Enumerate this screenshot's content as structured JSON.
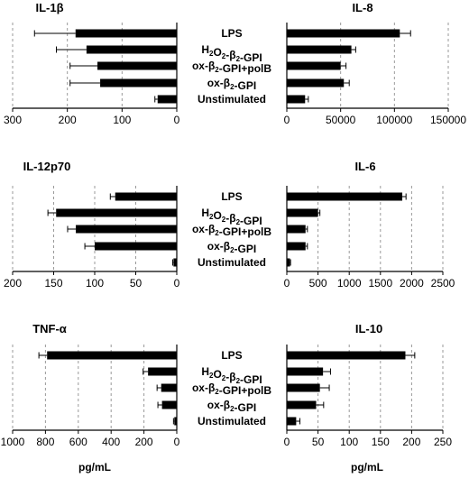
{
  "categories": [
    "LPS",
    "H2O2-β2-GPI",
    "ox-β2-GPI+polB",
    "ox-β2-GPI",
    "Unstimulated"
  ],
  "category_labels": [
    [
      {
        "t": "LPS"
      }
    ],
    [
      {
        "t": "H"
      },
      {
        "t": "2",
        "s": true
      },
      {
        "t": "O"
      },
      {
        "t": "2",
        "s": true
      },
      {
        "t": "-β"
      },
      {
        "t": "2",
        "s": true
      },
      {
        "t": "-GPI"
      }
    ],
    [
      {
        "t": "ox-β"
      },
      {
        "t": "2",
        "s": true
      },
      {
        "t": "-GPI+polB"
      }
    ],
    [
      {
        "t": "ox-β"
      },
      {
        "t": "2",
        "s": true
      },
      {
        "t": "-GPI"
      }
    ],
    [
      {
        "t": "Unstimulated"
      }
    ]
  ],
  "x_unit": "pg/mL",
  "colors": {
    "bar": "#000000",
    "grid": "#999999",
    "axis": "#000000"
  },
  "chart_data": [
    {
      "type": "bar",
      "orientation": "horizontal",
      "direction": "reversed",
      "title": "IL-1β",
      "xlim": [
        0,
        300
      ],
      "ticks": [
        300,
        200,
        100,
        0
      ],
      "grid": true,
      "values": [
        185,
        165,
        145,
        140,
        35
      ],
      "errors": [
        75,
        55,
        50,
        55,
        5
      ]
    },
    {
      "type": "bar",
      "orientation": "horizontal",
      "direction": "normal",
      "title": "IL-8",
      "xlim": [
        0,
        150000
      ],
      "ticks": [
        0,
        50000,
        100000,
        150000
      ],
      "grid": true,
      "values": [
        105000,
        60000,
        50000,
        53000,
        17000
      ],
      "errors": [
        10000,
        4000,
        5000,
        5000,
        3000
      ]
    },
    {
      "type": "bar",
      "orientation": "horizontal",
      "direction": "reversed",
      "title": "IL-12p70",
      "xlim": [
        0,
        200
      ],
      "ticks": [
        200,
        150,
        100,
        50,
        0
      ],
      "grid": true,
      "values": [
        75,
        147,
        123,
        100,
        4
      ],
      "errors": [
        6,
        10,
        10,
        12,
        1
      ]
    },
    {
      "type": "bar",
      "orientation": "horizontal",
      "direction": "normal",
      "title": "IL-6",
      "xlim": [
        0,
        2500
      ],
      "ticks": [
        0,
        500,
        1000,
        1500,
        2000,
        2500
      ],
      "grid": true,
      "values": [
        1850,
        500,
        300,
        300,
        50
      ],
      "errors": [
        60,
        30,
        30,
        30,
        10
      ]
    },
    {
      "type": "bar",
      "orientation": "horizontal",
      "direction": "reversed",
      "title": "TNF-α",
      "xlim": [
        0,
        1000
      ],
      "ticks": [
        1000,
        800,
        600,
        400,
        200,
        0
      ],
      "grid": true,
      "values": [
        790,
        175,
        95,
        90,
        15
      ],
      "errors": [
        50,
        30,
        25,
        25,
        5
      ]
    },
    {
      "type": "bar",
      "orientation": "horizontal",
      "direction": "normal",
      "title": "IL-10",
      "xlim": [
        0,
        250
      ],
      "ticks": [
        0,
        50,
        100,
        150,
        200,
        250
      ],
      "grid": true,
      "values": [
        190,
        58,
        53,
        47,
        15
      ],
      "errors": [
        15,
        12,
        15,
        12,
        6
      ]
    }
  ]
}
